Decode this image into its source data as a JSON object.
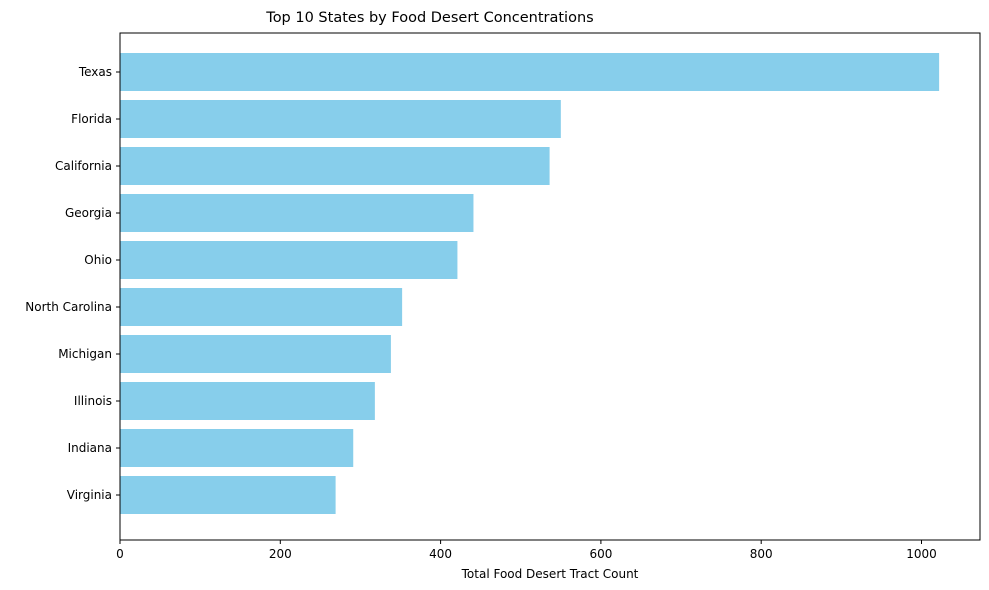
{
  "chart_data": {
    "type": "bar",
    "orientation": "horizontal",
    "title": "Top 10 States by Food Desert Concentrations",
    "xlabel": "Total Food Desert Tract Count",
    "ylabel": "",
    "categories": [
      "Texas",
      "Florida",
      "California",
      "Georgia",
      "Ohio",
      "North Carolina",
      "Michigan",
      "Illinois",
      "Indiana",
      "Virginia"
    ],
    "values": [
      1022,
      550,
      536,
      441,
      421,
      352,
      338,
      318,
      291,
      269
    ],
    "xlim": [
      0,
      1073
    ],
    "xticks": [
      0,
      200,
      400,
      600,
      800,
      1000
    ],
    "bar_color": "#87CEEB",
    "grid": false,
    "legend": "none"
  }
}
